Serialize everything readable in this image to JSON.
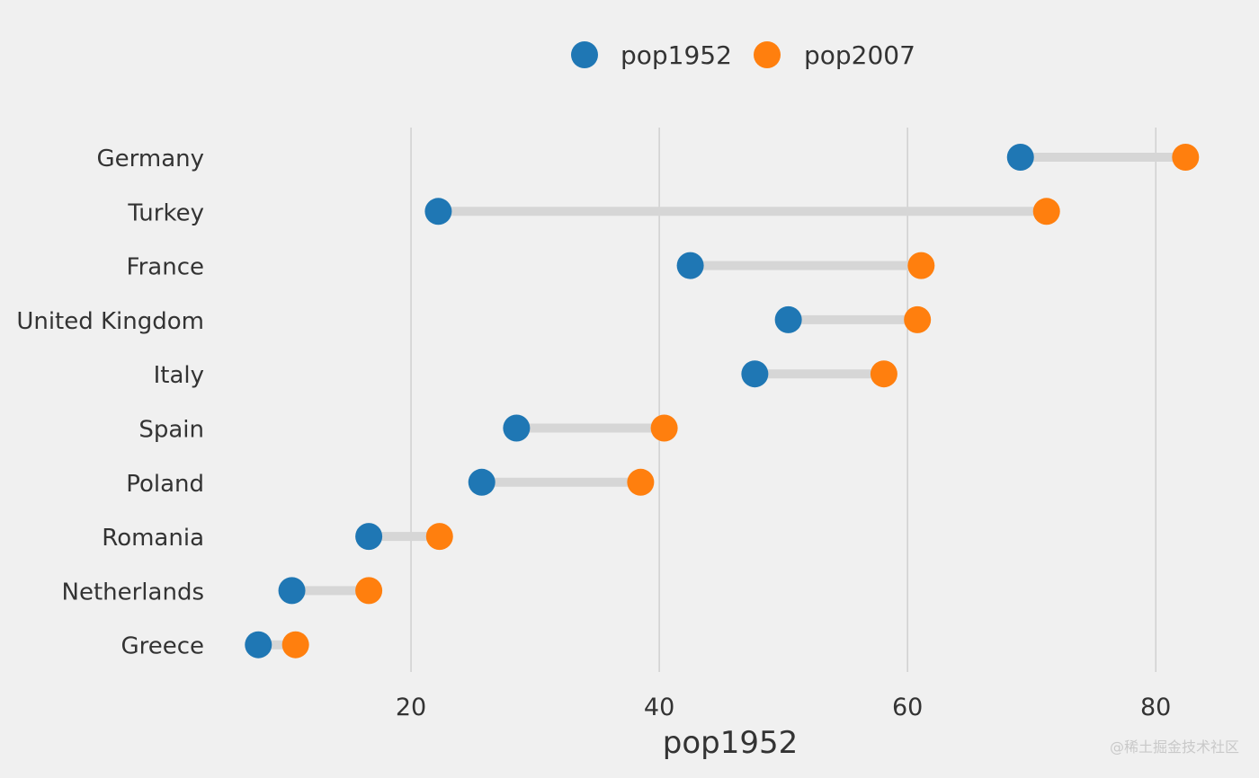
{
  "watermark": "@稀土掘金技术社区",
  "colors": {
    "background": "#f0f0f0",
    "grid": "#c8c8c8",
    "connector": "#d6d6d6",
    "pop1952": "#1f77b4",
    "pop2007": "#ff7f0e",
    "text": "#333333"
  },
  "chart_data": {
    "type": "dumbbell",
    "title": "",
    "xlabel": "pop1952",
    "ylabel": "",
    "xlim": [
      5,
      86
    ],
    "x_ticks": [
      20,
      40,
      60,
      80
    ],
    "x_tick_labels": [
      "20",
      "40",
      "60",
      "80"
    ],
    "grid": true,
    "legend_position": "top-center",
    "categories": [
      "Germany",
      "Turkey",
      "France",
      "United Kingdom",
      "Italy",
      "Spain",
      "Poland",
      "Romania",
      "Netherlands",
      "Greece"
    ],
    "series": [
      {
        "name": "pop1952",
        "color": "#1f77b4",
        "values": [
          69.1,
          22.2,
          42.5,
          50.4,
          47.7,
          28.5,
          25.7,
          16.6,
          10.4,
          7.7
        ]
      },
      {
        "name": "pop2007",
        "color": "#ff7f0e",
        "values": [
          82.4,
          71.2,
          61.1,
          60.8,
          58.1,
          40.4,
          38.5,
          22.3,
          16.6,
          10.7
        ]
      }
    ]
  }
}
